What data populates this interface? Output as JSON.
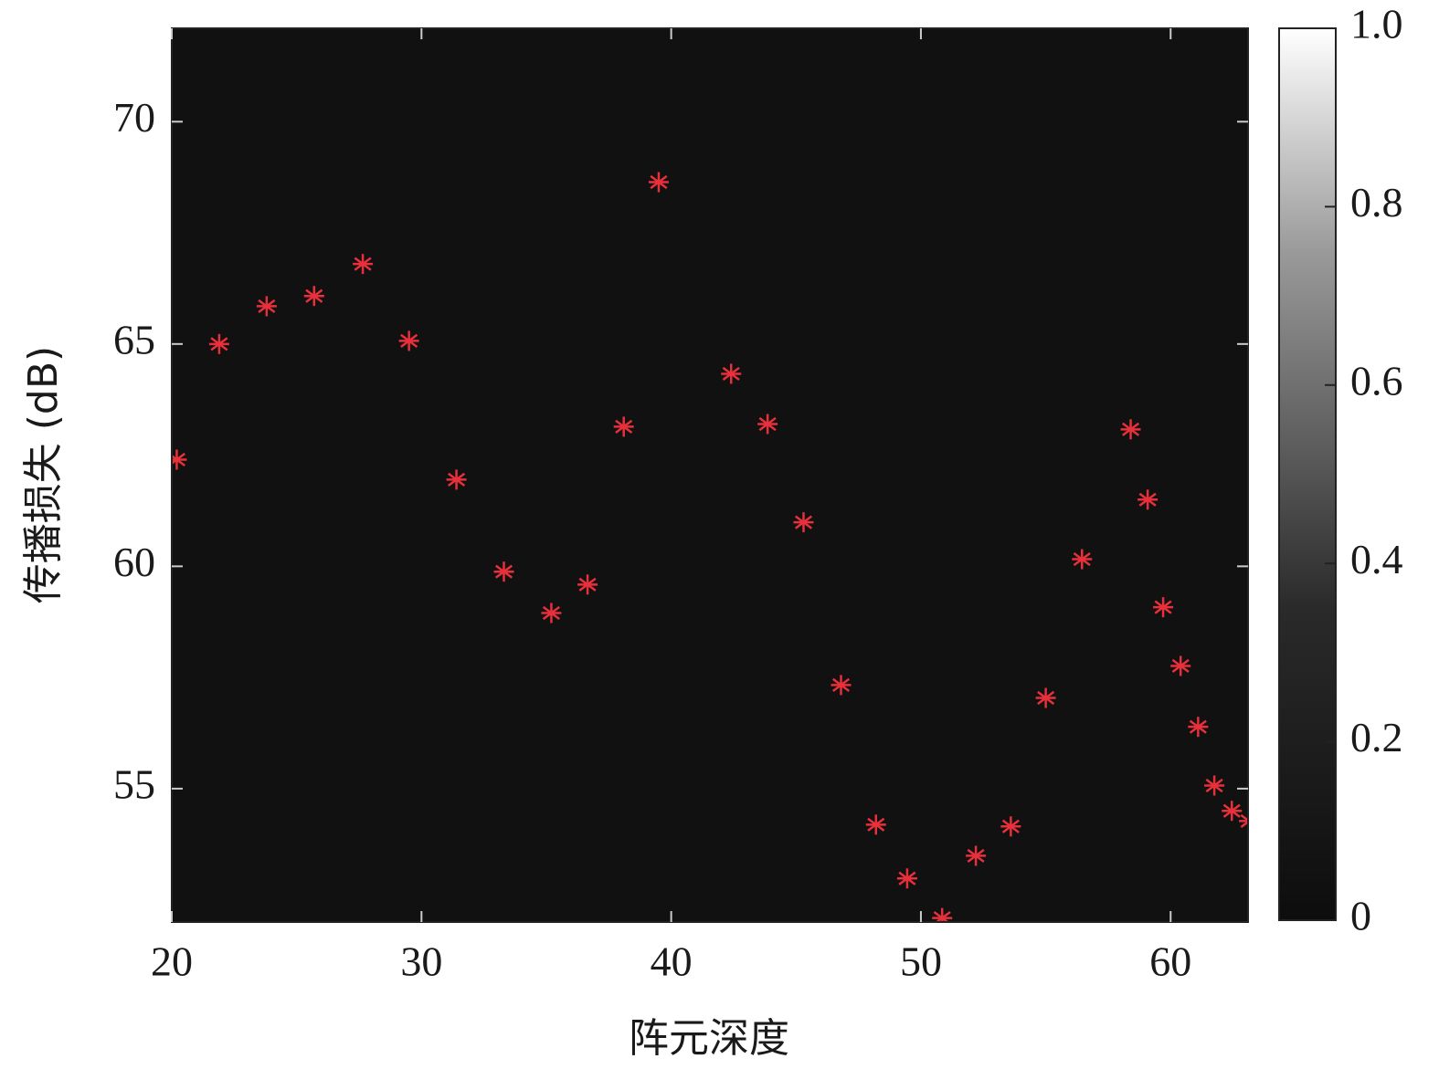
{
  "chart_data": {
    "type": "scatter",
    "xlabel": "阵元深度",
    "ylabel": "传播损失 (dB)",
    "x": [
      20.2,
      21.9,
      23.8,
      25.7,
      27.65,
      29.5,
      31.4,
      33.3,
      35.2,
      36.65,
      38.1,
      39.5,
      42.4,
      43.86,
      45.3,
      46.8,
      48.2,
      49.45,
      50.85,
      52.2,
      53.6,
      55.0,
      56.45,
      58.4,
      59.08,
      59.7,
      60.4,
      61.1,
      61.75,
      62.45,
      63.14
    ],
    "values": [
      62.4,
      65.0,
      65.85,
      66.08,
      66.8,
      65.07,
      61.95,
      59.88,
      58.95,
      59.59,
      63.14,
      68.64,
      64.33,
      63.2,
      60.99,
      57.33,
      54.19,
      52.98,
      52.09,
      53.49,
      54.15,
      57.04,
      60.16,
      63.08,
      61.5,
      59.08,
      57.76,
      56.39,
      55.07,
      54.5,
      54.27
    ],
    "color": "#e8303a",
    "marker": "asterisk",
    "background": "#111111",
    "xlim": [
      20,
      63.1
    ],
    "xticks": [
      20,
      30,
      40,
      50,
      60
    ],
    "ylim": [
      52.0,
      72.1
    ],
    "yticks": [
      55,
      60,
      65,
      70
    ],
    "colorbar": {
      "lim": [
        0,
        1
      ],
      "colors": [
        "#0d0d0d",
        "#ffffff"
      ],
      "ticks": [
        0,
        0.2,
        0.4,
        0.6,
        0.8,
        {
          "value": 1,
          "label": "1.0"
        }
      ]
    }
  }
}
